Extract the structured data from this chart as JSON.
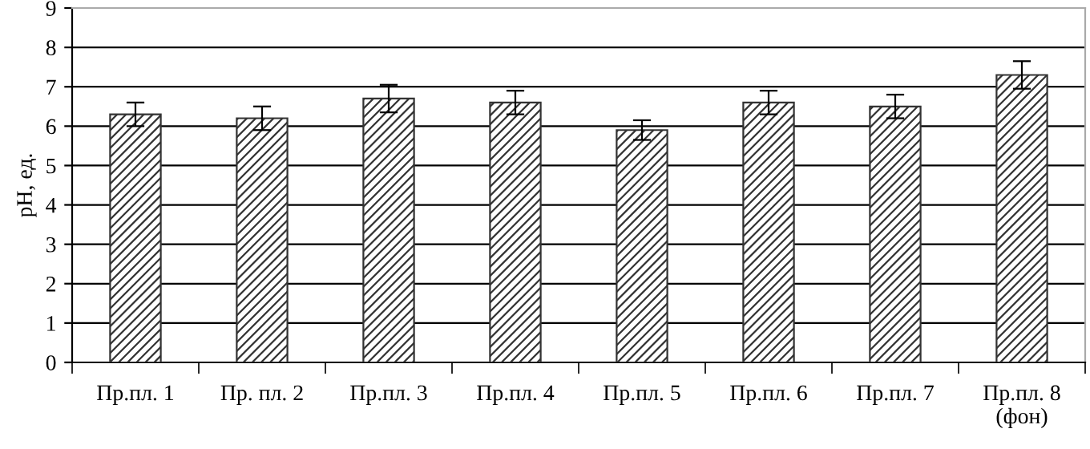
{
  "chart_data": {
    "type": "bar",
    "ylabel": "pH, ед.",
    "categories": [
      "Пр.пл. 1",
      "Пр. пл. 2",
      "Пр.пл. 3",
      "Пр.пл. 4",
      "Пр.пл. 5",
      "Пр.пл. 6",
      "Пр.пл. 7",
      "Пр.пл. 8\n(фон)"
    ],
    "values": [
      6.3,
      6.2,
      6.7,
      6.6,
      5.9,
      6.6,
      6.5,
      7.3
    ],
    "errors": [
      0.3,
      0.3,
      0.35,
      0.3,
      0.25,
      0.3,
      0.3,
      0.35
    ],
    "color": "#333333",
    "ylim": [
      0,
      9
    ],
    "yticks": [
      0,
      1,
      2,
      3,
      4,
      5,
      6,
      7,
      8,
      9
    ],
    "grid": "y"
  }
}
